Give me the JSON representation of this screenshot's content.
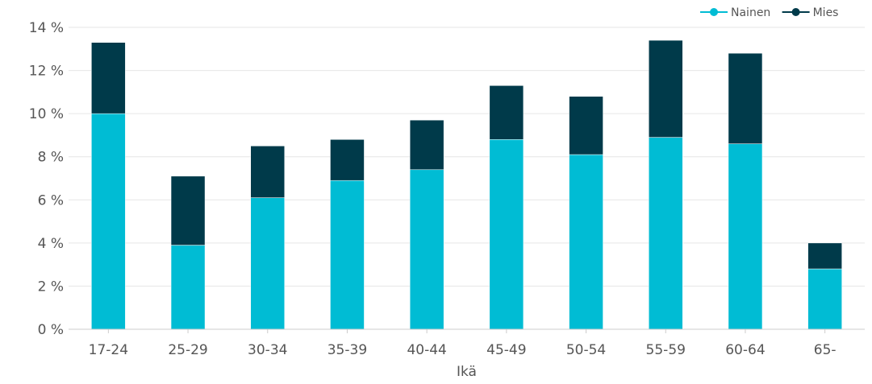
{
  "chart_data": {
    "type": "bar",
    "stacked": true,
    "categories": [
      "17-24",
      "25-29",
      "30-34",
      "35-39",
      "40-44",
      "45-49",
      "50-54",
      "55-59",
      "60-64",
      "65-"
    ],
    "series": [
      {
        "name": "Nainen",
        "color": "#00bcd4",
        "values": [
          10.0,
          3.9,
          6.1,
          6.9,
          7.4,
          8.8,
          8.1,
          8.9,
          8.6,
          2.8
        ]
      },
      {
        "name": "Mies",
        "color": "#003a4a",
        "values": [
          3.3,
          3.2,
          2.4,
          1.9,
          2.3,
          2.5,
          2.7,
          4.5,
          4.2,
          1.2
        ]
      }
    ],
    "xlabel": "Ikä",
    "ylabel": "",
    "ylim": [
      0,
      14
    ],
    "yticks": [
      0,
      2,
      4,
      6,
      8,
      10,
      12,
      14
    ],
    "ytick_suffix": " %",
    "grid": true,
    "legend_position": "top-right"
  }
}
